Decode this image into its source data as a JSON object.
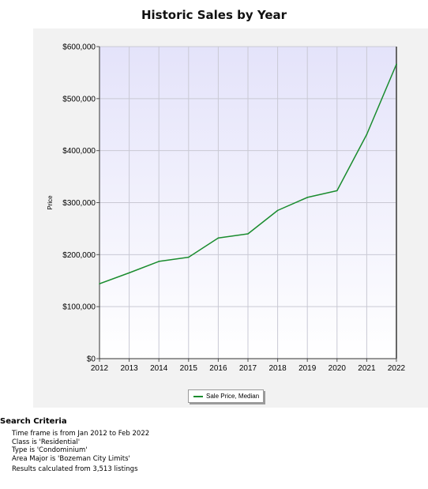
{
  "chart_data": {
    "type": "line",
    "title": "Historic Sales by Year",
    "ylabel": "Price",
    "xlabel": "",
    "x": [
      2012,
      2013,
      2014,
      2015,
      2016,
      2017,
      2018,
      2019,
      2020,
      2021,
      2022
    ],
    "series": [
      {
        "name": "Sale Price, Median",
        "values": [
          144000,
          165000,
          187000,
          195000,
          232000,
          240000,
          285000,
          310000,
          323000,
          431000,
          566000
        ],
        "color": "#1a8c2e"
      }
    ],
    "xlim": [
      2012,
      2022
    ],
    "ylim": [
      0,
      600000
    ],
    "y_ticks": [
      0,
      100000,
      200000,
      300000,
      400000,
      500000,
      600000
    ],
    "y_tick_labels": [
      "$0",
      "$100,000",
      "$200,000",
      "$300,000",
      "$400,000",
      "$500,000",
      "$600,000"
    ],
    "x_tick_labels": [
      "2012",
      "2013",
      "2014",
      "2015",
      "2016",
      "2017",
      "2018",
      "2019",
      "2020",
      "2021",
      "2022"
    ],
    "grid": true,
    "legend_position": "bottom-center",
    "plot_background": [
      "#e4e3fa",
      "#ffffff"
    ]
  },
  "search_criteria": {
    "title": "Search Criteria",
    "lines": [
      "Time frame is from Jan 2012 to Feb 2022",
      "Class is 'Residential'",
      "Type is 'Condominium'",
      "Area Major is 'Bozeman City Limits'"
    ],
    "result": "Results calculated from 3,513 listings"
  }
}
